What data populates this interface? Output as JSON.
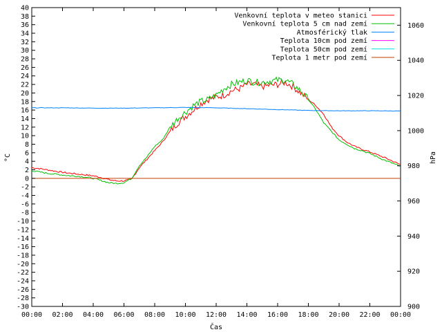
{
  "chart_data": {
    "type": "line",
    "xlabel": "Čas",
    "ylabel_left": "°C",
    "ylabel_right": "hPa",
    "x_ticks": [
      "00:00",
      "02:00",
      "04:00",
      "06:00",
      "08:00",
      "10:00",
      "12:00",
      "14:00",
      "16:00",
      "18:00",
      "20:00",
      "22:00",
      "00:00"
    ],
    "x_range_hours": [
      0,
      24
    ],
    "ylim_left": [
      -30,
      40
    ],
    "ylim_right": [
      900,
      1070
    ],
    "y_ticks_left": [
      -30,
      -28,
      -26,
      -24,
      -22,
      -20,
      -18,
      -16,
      -14,
      -12,
      -10,
      -8,
      -6,
      -4,
      -2,
      0,
      2,
      4,
      6,
      8,
      10,
      12,
      14,
      16,
      18,
      20,
      22,
      24,
      26,
      28,
      30,
      32,
      34,
      36,
      38,
      40
    ],
    "y_ticks_right": [
      900,
      920,
      940,
      960,
      980,
      1000,
      1020,
      1040,
      1060
    ],
    "grid": false,
    "legend_position": "top-right",
    "series": [
      {
        "name": "Venkovní teplota v meteo stanici",
        "color": "#ff0000",
        "axis": "left",
        "x": [
          0,
          0.5,
          1,
          1.5,
          2,
          2.5,
          3,
          3.5,
          4,
          4.5,
          5,
          5.5,
          6,
          6.5,
          7,
          7.5,
          8,
          8.5,
          9,
          9.5,
          10,
          10.5,
          11,
          11.5,
          12,
          12.5,
          13,
          13.5,
          14,
          14.5,
          15,
          15.5,
          16,
          16.5,
          17,
          17.5,
          18,
          18.5,
          19,
          19.5,
          20,
          20.5,
          21,
          21.5,
          22,
          22.5,
          23,
          23.5,
          24
        ],
        "values": [
          2.5,
          2.3,
          2.0,
          1.7,
          1.4,
          1.2,
          1.0,
          0.8,
          0.6,
          0.2,
          -0.3,
          -0.6,
          -0.6,
          -0.2,
          2.5,
          4.5,
          6.5,
          8.5,
          11.0,
          13.0,
          14.5,
          16.0,
          17.5,
          18.5,
          19.0,
          19.5,
          20.5,
          21.0,
          22.0,
          22.0,
          21.5,
          21.8,
          22.0,
          22.5,
          21.5,
          20.0,
          18.5,
          17.0,
          15.0,
          12.0,
          10.0,
          8.5,
          7.5,
          6.8,
          6.2,
          5.5,
          4.8,
          4.0,
          3.2
        ]
      },
      {
        "name": "Venkovní teplota 5 cm nad zemí",
        "color": "#00c000",
        "axis": "left",
        "x": [
          0,
          0.5,
          1,
          1.5,
          2,
          2.5,
          3,
          3.5,
          4,
          4.5,
          5,
          5.5,
          6,
          6.5,
          7,
          7.5,
          8,
          8.5,
          9,
          9.5,
          10,
          10.5,
          11,
          11.5,
          12,
          12.5,
          13,
          13.5,
          14,
          14.5,
          15,
          15.5,
          16,
          16.5,
          17,
          17.5,
          18,
          18.5,
          19,
          19.5,
          20,
          20.5,
          21,
          21.5,
          22,
          22.5,
          23,
          23.5,
          24
        ],
        "values": [
          1.8,
          1.5,
          1.2,
          1.0,
          0.8,
          0.6,
          0.5,
          0.3,
          0.0,
          -0.5,
          -1.0,
          -1.2,
          -1.0,
          0.0,
          3.0,
          5.0,
          7.5,
          9.0,
          12.0,
          14.0,
          15.5,
          17.0,
          18.0,
          18.5,
          19.5,
          21.0,
          22.0,
          22.5,
          23.0,
          22.5,
          22.5,
          22.8,
          23.0,
          23.0,
          22.0,
          20.5,
          18.5,
          16.0,
          13.0,
          11.0,
          9.0,
          8.0,
          7.0,
          6.5,
          5.8,
          5.0,
          4.2,
          3.5,
          2.8
        ]
      },
      {
        "name": "Atmosférický tlak",
        "color": "#0080ff",
        "axis": "right",
        "x": [
          0,
          2,
          4,
          6,
          8,
          10,
          12,
          14,
          16,
          18,
          20,
          22,
          24
        ],
        "values": [
          1013.0,
          1013.0,
          1012.8,
          1012.8,
          1013.0,
          1013.2,
          1013.0,
          1012.5,
          1012.0,
          1011.5,
          1011.3,
          1011.3,
          1011.2
        ]
      },
      {
        "name": "Teplota 10cm pod zemí",
        "color": "#ff00ff",
        "axis": "left",
        "x": [],
        "values": []
      },
      {
        "name": "Teplota 50cm pod zemí",
        "color": "#00e0e0",
        "axis": "left",
        "x": [],
        "values": []
      },
      {
        "name": "Teplota 1 metr pod zemí",
        "color": "#c04000",
        "axis": "left",
        "x": [
          0,
          24
        ],
        "values": [
          0,
          0
        ]
      }
    ]
  }
}
